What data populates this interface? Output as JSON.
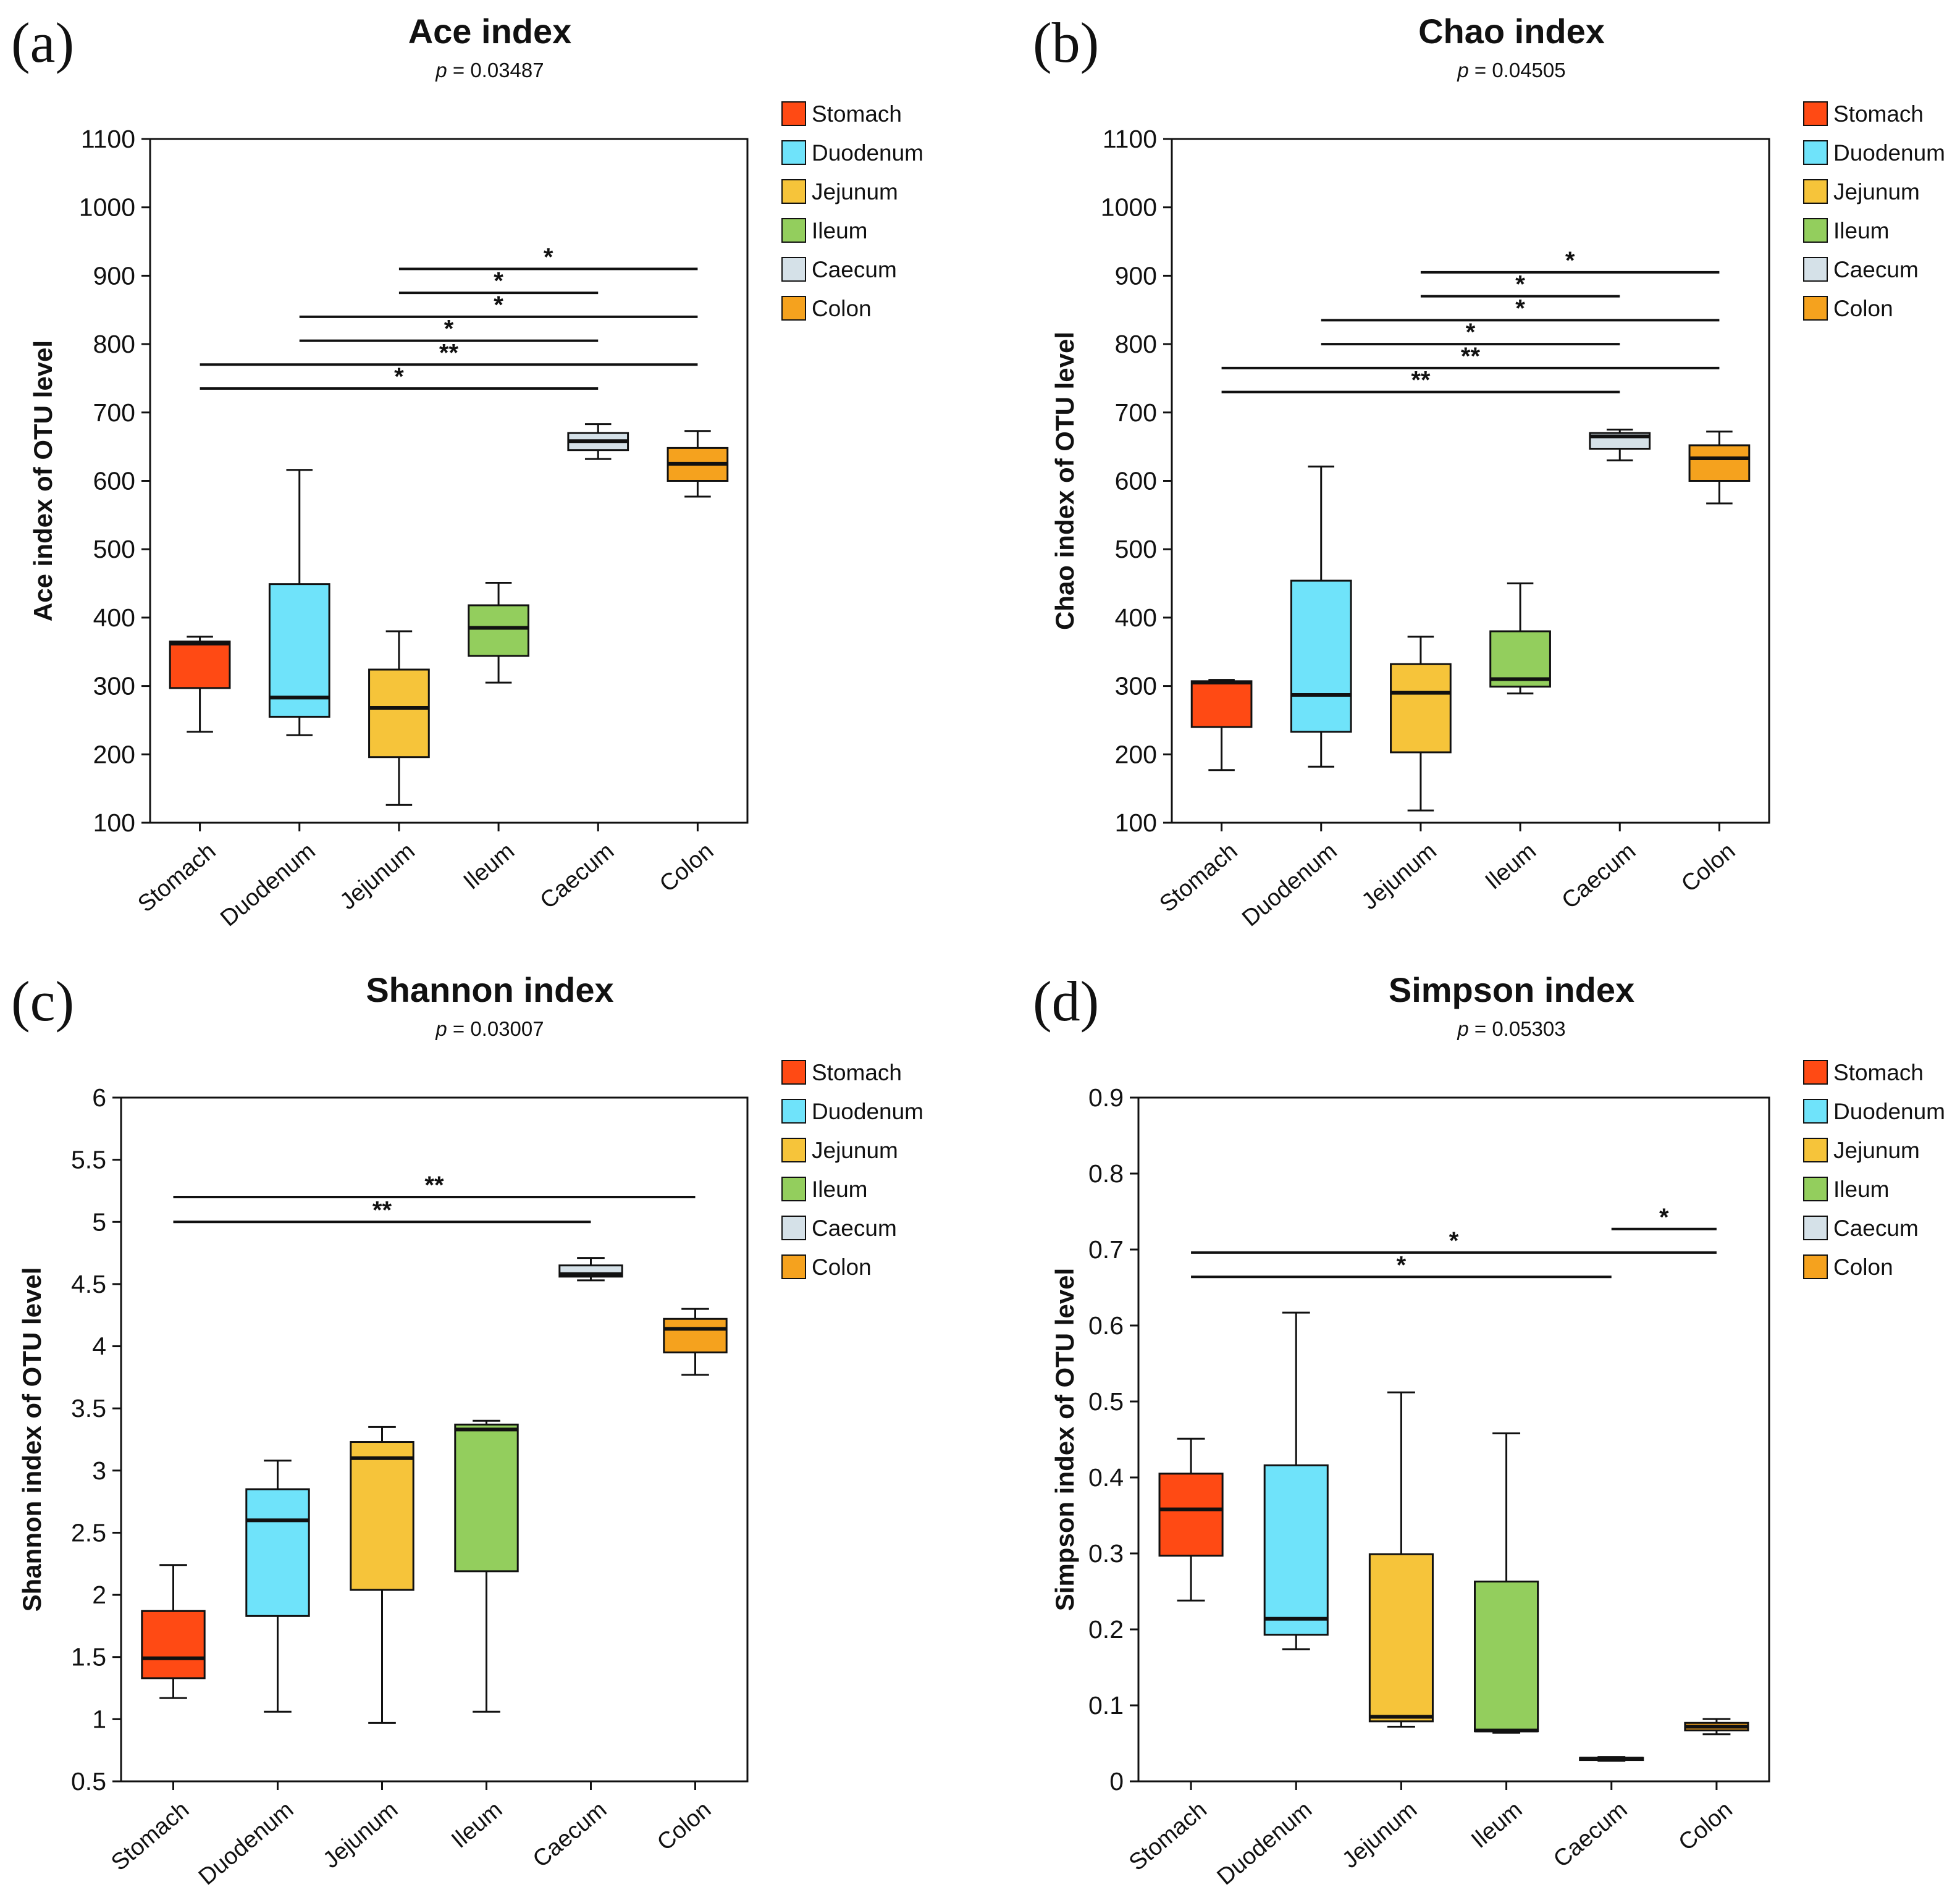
{
  "figure": {
    "domain": "boxplot-grid"
  },
  "legend_items": [
    {
      "label": "Stomach",
      "color": "#FF4A14"
    },
    {
      "label": "Duodenum",
      "color": "#6FE3FA"
    },
    {
      "label": "Jejunum",
      "color": "#F6C43A"
    },
    {
      "label": "Ileum",
      "color": "#93CE5D"
    },
    {
      "label": "Caecum",
      "color": "#D5E1E8"
    },
    {
      "label": "Colon",
      "color": "#F5A21E"
    }
  ],
  "chart_data": [
    {
      "type": "box",
      "panel": "(a)",
      "title": "Ace index",
      "p_prefix": "p",
      "p_value": " = 0.03487",
      "ylabel": "Ace index of OTU level",
      "ylim": [
        100,
        1100
      ],
      "yticks": [
        100,
        200,
        300,
        400,
        500,
        600,
        700,
        800,
        900,
        1000,
        1100
      ],
      "categories": [
        "Stomach",
        "Duodenum",
        "Jejunum",
        "Ileum",
        "Caecum",
        "Colon"
      ],
      "boxes": [
        {
          "min": 233,
          "q1": 297,
          "median": 362,
          "q3": 365,
          "max": 372
        },
        {
          "min": 228,
          "q1": 255,
          "median": 283,
          "q3": 449,
          "max": 616
        },
        {
          "min": 126,
          "q1": 196,
          "median": 268,
          "q3": 324,
          "max": 380
        },
        {
          "min": 305,
          "q1": 344,
          "median": 385,
          "q3": 418,
          "max": 451
        },
        {
          "min": 632,
          "q1": 645,
          "median": 658,
          "q3": 670,
          "max": 683
        },
        {
          "min": 577,
          "q1": 600,
          "median": 625,
          "q3": 648,
          "max": 673
        }
      ],
      "significance": [
        {
          "from": 2,
          "to": 5,
          "y": 910,
          "label": "*"
        },
        {
          "from": 2,
          "to": 4,
          "y": 875,
          "label": "*"
        },
        {
          "from": 1,
          "to": 5,
          "y": 840,
          "label": "*"
        },
        {
          "from": 1,
          "to": 4,
          "y": 805,
          "label": "*"
        },
        {
          "from": 0,
          "to": 5,
          "y": 770,
          "label": "**"
        },
        {
          "from": 0,
          "to": 4,
          "y": 735,
          "label": "*"
        }
      ]
    },
    {
      "type": "box",
      "panel": "(b)",
      "title": "Chao index",
      "p_prefix": "p",
      "p_value": " = 0.04505",
      "ylabel": "Chao index of OTU level",
      "ylim": [
        100,
        1100
      ],
      "yticks": [
        100,
        200,
        300,
        400,
        500,
        600,
        700,
        800,
        900,
        1000,
        1100
      ],
      "categories": [
        "Stomach",
        "Duodenum",
        "Jejunum",
        "Ileum",
        "Caecum",
        "Colon"
      ],
      "boxes": [
        {
          "min": 177,
          "q1": 240,
          "median": 305,
          "q3": 307,
          "max": 309
        },
        {
          "min": 182,
          "q1": 233,
          "median": 287,
          "q3": 454,
          "max": 621
        },
        {
          "min": 118,
          "q1": 203,
          "median": 290,
          "q3": 332,
          "max": 372
        },
        {
          "min": 289,
          "q1": 299,
          "median": 310,
          "q3": 380,
          "max": 450
        },
        {
          "min": 630,
          "q1": 647,
          "median": 665,
          "q3": 670,
          "max": 675
        },
        {
          "min": 567,
          "q1": 600,
          "median": 633,
          "q3": 652,
          "max": 672
        }
      ],
      "significance": [
        {
          "from": 2,
          "to": 5,
          "y": 905,
          "label": "*"
        },
        {
          "from": 2,
          "to": 4,
          "y": 870,
          "label": "*"
        },
        {
          "from": 1,
          "to": 5,
          "y": 835,
          "label": "*"
        },
        {
          "from": 1,
          "to": 4,
          "y": 800,
          "label": "*"
        },
        {
          "from": 0,
          "to": 5,
          "y": 765,
          "label": "**"
        },
        {
          "from": 0,
          "to": 4,
          "y": 730,
          "label": "**"
        }
      ]
    },
    {
      "type": "box",
      "panel": "(c)",
      "title": "Shannon index",
      "p_prefix": "p",
      "p_value": " = 0.03007",
      "ylabel": "Shannon index of OTU level",
      "ylim": [
        0.5,
        6
      ],
      "yticks": [
        0.5,
        1,
        1.5,
        2,
        2.5,
        3,
        3.5,
        4,
        4.5,
        5,
        5.5,
        6
      ],
      "categories": [
        "Stomach",
        "Duodenum",
        "Jejunum",
        "Ileum",
        "Caecum",
        "Colon"
      ],
      "boxes": [
        {
          "min": 1.17,
          "q1": 1.33,
          "median": 1.49,
          "q3": 1.87,
          "max": 2.24
        },
        {
          "min": 1.06,
          "q1": 1.83,
          "median": 2.6,
          "q3": 2.85,
          "max": 3.08
        },
        {
          "min": 0.97,
          "q1": 2.04,
          "median": 3.1,
          "q3": 3.23,
          "max": 3.35
        },
        {
          "min": 1.06,
          "q1": 2.19,
          "median": 3.33,
          "q3": 3.37,
          "max": 3.4
        },
        {
          "min": 4.53,
          "q1": 4.56,
          "median": 4.58,
          "q3": 4.65,
          "max": 4.71
        },
        {
          "min": 3.77,
          "q1": 3.95,
          "median": 4.14,
          "q3": 4.22,
          "max": 4.3
        }
      ],
      "significance": [
        {
          "from": 0,
          "to": 5,
          "y": 5.2,
          "label": "**"
        },
        {
          "from": 0,
          "to": 4,
          "y": 5.0,
          "label": "**"
        }
      ]
    },
    {
      "type": "box",
      "panel": "(d)",
      "title": "Simpson index",
      "p_prefix": "p",
      "p_value": " = 0.05303",
      "ylabel": "Simpson index of OTU level",
      "ylim": [
        0,
        0.9
      ],
      "yticks": [
        0,
        0.1,
        0.2,
        0.3,
        0.4,
        0.5,
        0.6,
        0.7,
        0.8,
        0.9
      ],
      "categories": [
        "Stomach",
        "Duodenum",
        "Jejunum",
        "Ileum",
        "Caecum",
        "Colon"
      ],
      "boxes": [
        {
          "min": 0.238,
          "q1": 0.297,
          "median": 0.358,
          "q3": 0.405,
          "max": 0.451
        },
        {
          "min": 0.174,
          "q1": 0.193,
          "median": 0.214,
          "q3": 0.416,
          "max": 0.617
        },
        {
          "min": 0.072,
          "q1": 0.079,
          "median": 0.085,
          "q3": 0.299,
          "max": 0.512
        },
        {
          "min": 0.064,
          "q1": 0.066,
          "median": 0.067,
          "q3": 0.263,
          "max": 0.458
        },
        {
          "min": 0.027,
          "q1": 0.028,
          "median": 0.03,
          "q3": 0.031,
          "max": 0.032
        },
        {
          "min": 0.062,
          "q1": 0.067,
          "median": 0.072,
          "q3": 0.077,
          "max": 0.082
        }
      ],
      "significance": [
        {
          "from": 4,
          "to": 5,
          "y": 0.727,
          "label": "*"
        },
        {
          "from": 0,
          "to": 5,
          "y": 0.696,
          "label": "*"
        },
        {
          "from": 0,
          "to": 4,
          "y": 0.664,
          "label": "*"
        }
      ]
    }
  ]
}
